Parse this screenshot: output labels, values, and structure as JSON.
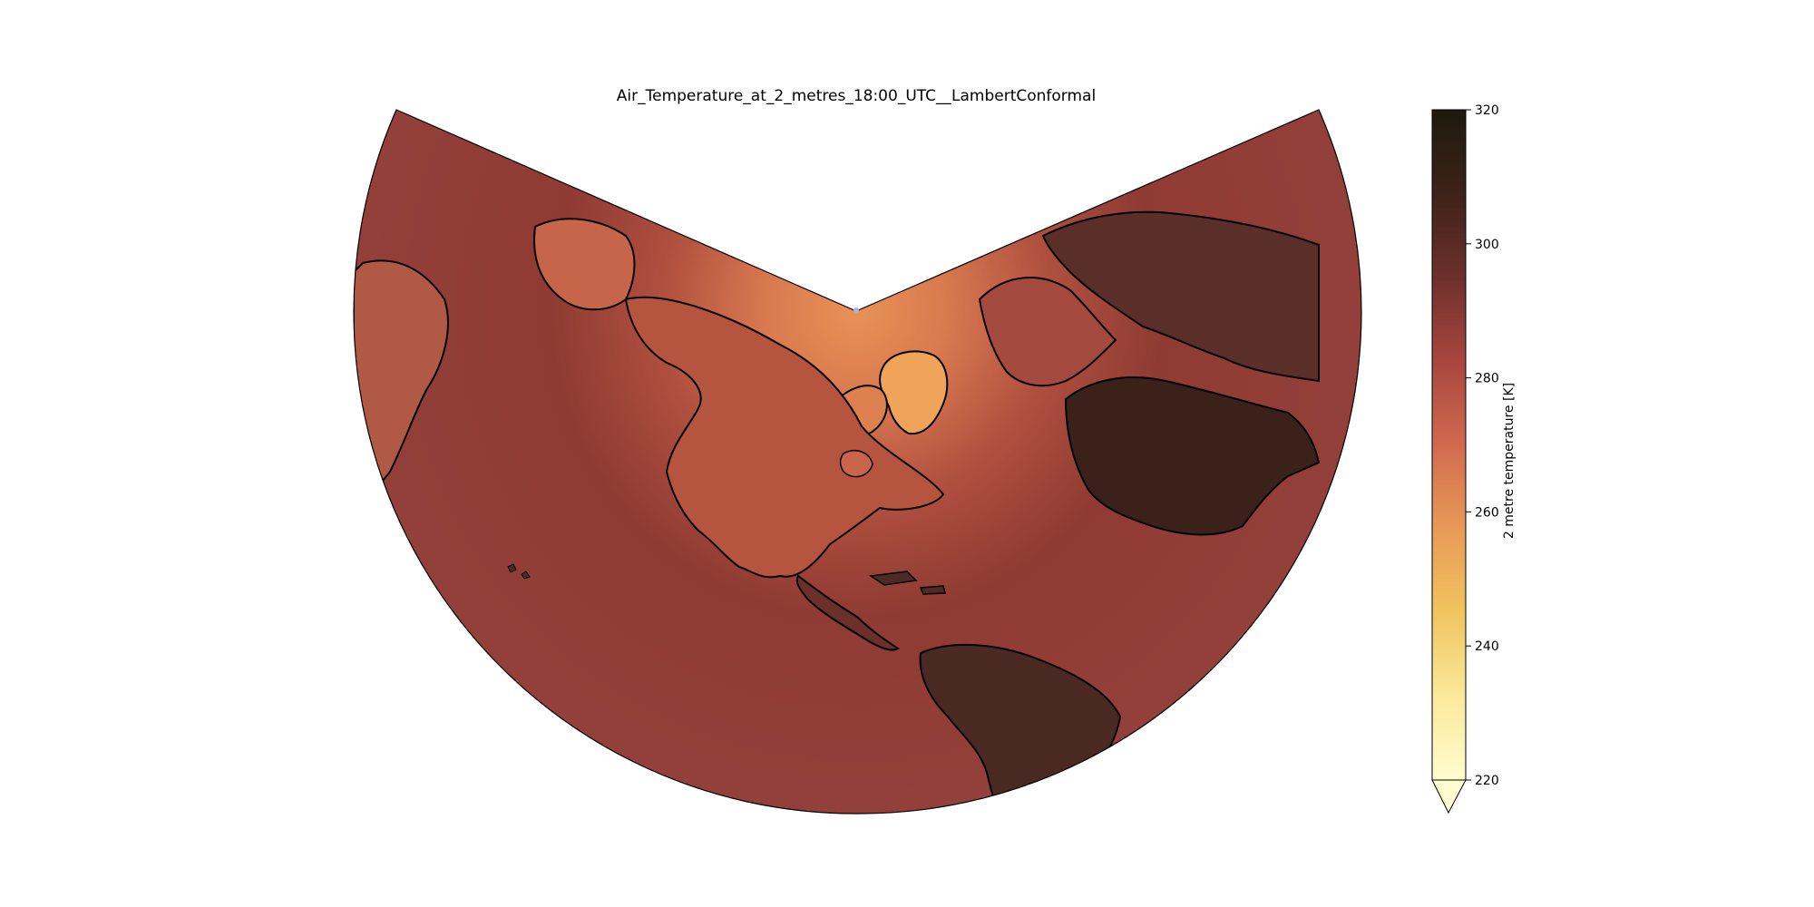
{
  "figure": {
    "title": "Air_Temperature_at_2_metres_18:00_UTC__LambertConformal"
  },
  "colorbar": {
    "label": "2 metre temperature [K]",
    "min": 220,
    "max": 320,
    "extend": "min",
    "ticks": [
      "220",
      "240",
      "260",
      "280",
      "300",
      "320"
    ],
    "colors": [
      "#fffccf",
      "#fbe99b",
      "#f0c45f",
      "#e89a57",
      "#d06a4f",
      "#a8463f",
      "#6e302c",
      "#3e2219",
      "#1d1a0c"
    ]
  },
  "map": {
    "projection": "LambertConformal",
    "ocean_color": "#9a413a",
    "land_tropical_color": "#4a2b24",
    "arctic_color": "#e08a55",
    "greenland_color": "#f2a85a",
    "coastline_color": "#000000"
  }
}
